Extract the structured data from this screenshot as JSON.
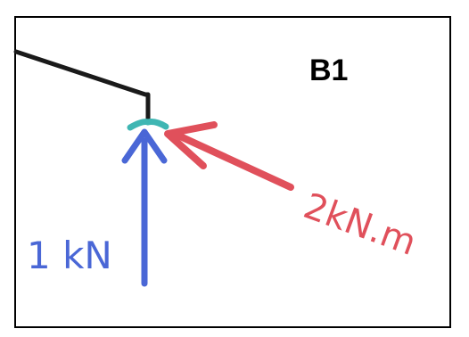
{
  "panel_label": "B1",
  "force": {
    "label": "1 kN",
    "color": "#4a67d6"
  },
  "moment": {
    "label": "2kN.m",
    "color": "#e0505b"
  },
  "member": {
    "color": "#1a1a1a"
  },
  "support": {
    "color": "#3fb6b3"
  }
}
